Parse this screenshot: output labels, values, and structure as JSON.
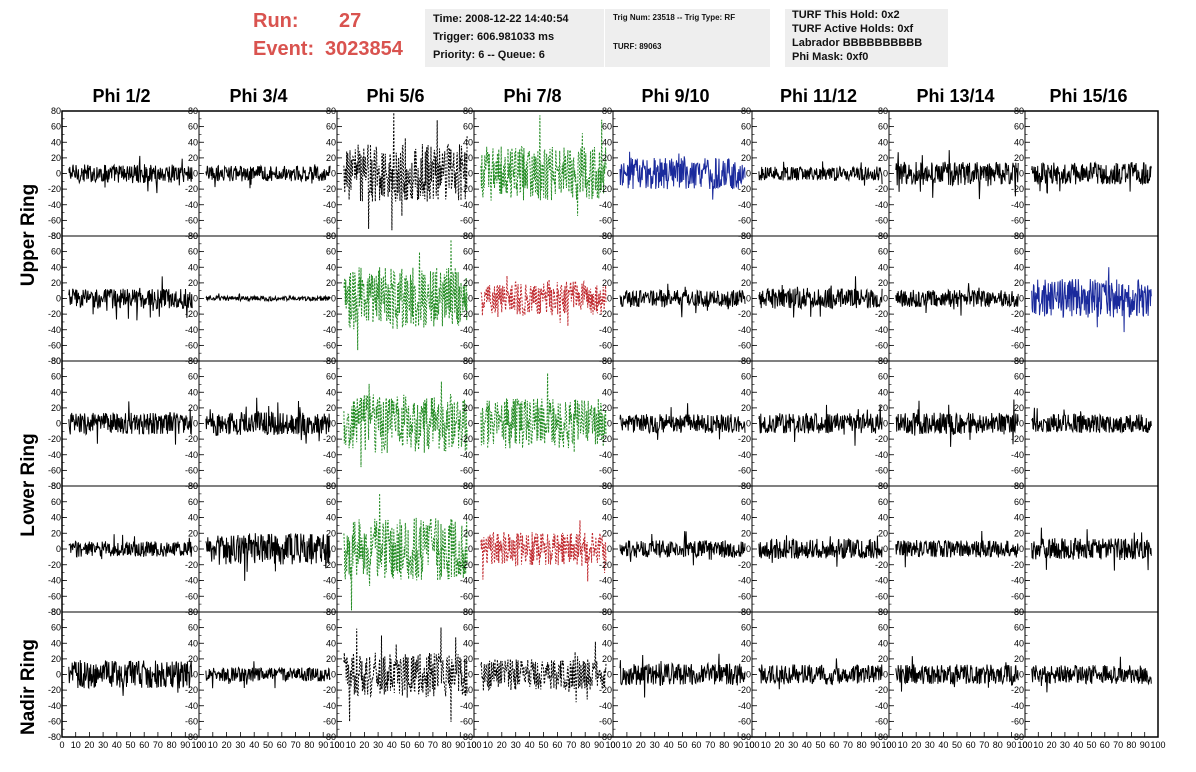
{
  "header": {
    "run_label": "Run:",
    "run_value": "27",
    "event_label": "Event:",
    "event_value": "3023854",
    "box1": [
      "Time: 2008-12-22 14:40:54",
      "Trigger: 606.981033 ms",
      "Priority: 6 -- Queue: 6"
    ],
    "box2": [
      "Trig Num: 23518 -- Trig Type: RF",
      "TURF: 89063"
    ],
    "box3": [
      "TURF This Hold: 0x2",
      "TURF Active Holds: 0xf",
      "Labrador BBBBBBBBBB",
      "Phi Mask: 0xf0"
    ]
  },
  "colors": {
    "run_text": "#d9534f",
    "black": "#000000",
    "green": "#228b22",
    "red": "#c0282d",
    "blue": "#1a2a9c",
    "box_bg": "#eeeeee"
  },
  "chart_data": {
    "type": "line",
    "columns": [
      "Phi 1/2",
      "Phi 3/4",
      "Phi 5/6",
      "Phi 7/8",
      "Phi 9/10",
      "Phi 11/12",
      "Phi 13/14",
      "Phi 15/16"
    ],
    "ring_labels": [
      {
        "label": "Upper Ring",
        "rows": [
          0,
          1
        ]
      },
      {
        "label": "Lower Ring",
        "rows": [
          2,
          3
        ]
      },
      {
        "label": "Nadir Ring",
        "rows": [
          4
        ]
      }
    ],
    "ylim": [
      -80,
      80
    ],
    "yticks": [
      -80,
      -60,
      -40,
      -20,
      0,
      20,
      40,
      60,
      80
    ],
    "xlim": [
      0,
      100
    ],
    "xticks": [
      0,
      10,
      20,
      30,
      40,
      50,
      60,
      70,
      80,
      90,
      100
    ],
    "panels": [
      [
        {
          "color": "black",
          "style": "solid",
          "amp": 12
        },
        {
          "color": "black",
          "style": "solid",
          "amp": 10
        },
        {
          "color": "black",
          "style": "dashed",
          "amp": 38
        },
        {
          "color": "green",
          "style": "dashed",
          "amp": 35
        },
        {
          "color": "blue",
          "style": "solid",
          "amp": 20
        },
        {
          "color": "black",
          "style": "solid",
          "amp": 9
        },
        {
          "color": "black",
          "style": "solid",
          "amp": 15
        },
        {
          "color": "black",
          "style": "solid",
          "amp": 14
        }
      ],
      [
        {
          "color": "black",
          "style": "solid",
          "amp": 13
        },
        {
          "color": "black",
          "style": "solid",
          "amp": 3
        },
        {
          "color": "green",
          "style": "dashed",
          "amp": 40
        },
        {
          "color": "red",
          "style": "dashed",
          "amp": 22
        },
        {
          "color": "black",
          "style": "solid",
          "amp": 11
        },
        {
          "color": "black",
          "style": "solid",
          "amp": 13
        },
        {
          "color": "black",
          "style": "solid",
          "amp": 11
        },
        {
          "color": "blue",
          "style": "solid",
          "amp": 25
        }
      ],
      [
        {
          "color": "black",
          "style": "solid",
          "amp": 14
        },
        {
          "color": "black",
          "style": "solid",
          "amp": 15
        },
        {
          "color": "green",
          "style": "dashed",
          "amp": 38
        },
        {
          "color": "green",
          "style": "dashed",
          "amp": 32
        },
        {
          "color": "black",
          "style": "solid",
          "amp": 12
        },
        {
          "color": "black",
          "style": "solid",
          "amp": 13
        },
        {
          "color": "black",
          "style": "solid",
          "amp": 14
        },
        {
          "color": "black",
          "style": "solid",
          "amp": 12
        }
      ],
      [
        {
          "color": "black",
          "style": "solid",
          "amp": 10
        },
        {
          "color": "black",
          "style": "solid",
          "amp": 20
        },
        {
          "color": "green",
          "style": "dashed",
          "amp": 40
        },
        {
          "color": "red",
          "style": "dashed",
          "amp": 22
        },
        {
          "color": "black",
          "style": "solid",
          "amp": 11
        },
        {
          "color": "black",
          "style": "solid",
          "amp": 13
        },
        {
          "color": "black",
          "style": "solid",
          "amp": 11
        },
        {
          "color": "black",
          "style": "solid",
          "amp": 14
        }
      ],
      [
        {
          "color": "black",
          "style": "solid",
          "amp": 18
        },
        {
          "color": "black",
          "style": "solid",
          "amp": 9
        },
        {
          "color": "black",
          "style": "dashed",
          "amp": 28
        },
        {
          "color": "black",
          "style": "dashed",
          "amp": 20
        },
        {
          "color": "black",
          "style": "solid",
          "amp": 14
        },
        {
          "color": "black",
          "style": "solid",
          "amp": 13
        },
        {
          "color": "black",
          "style": "solid",
          "amp": 13
        },
        {
          "color": "black",
          "style": "solid",
          "amp": 12
        }
      ]
    ]
  }
}
